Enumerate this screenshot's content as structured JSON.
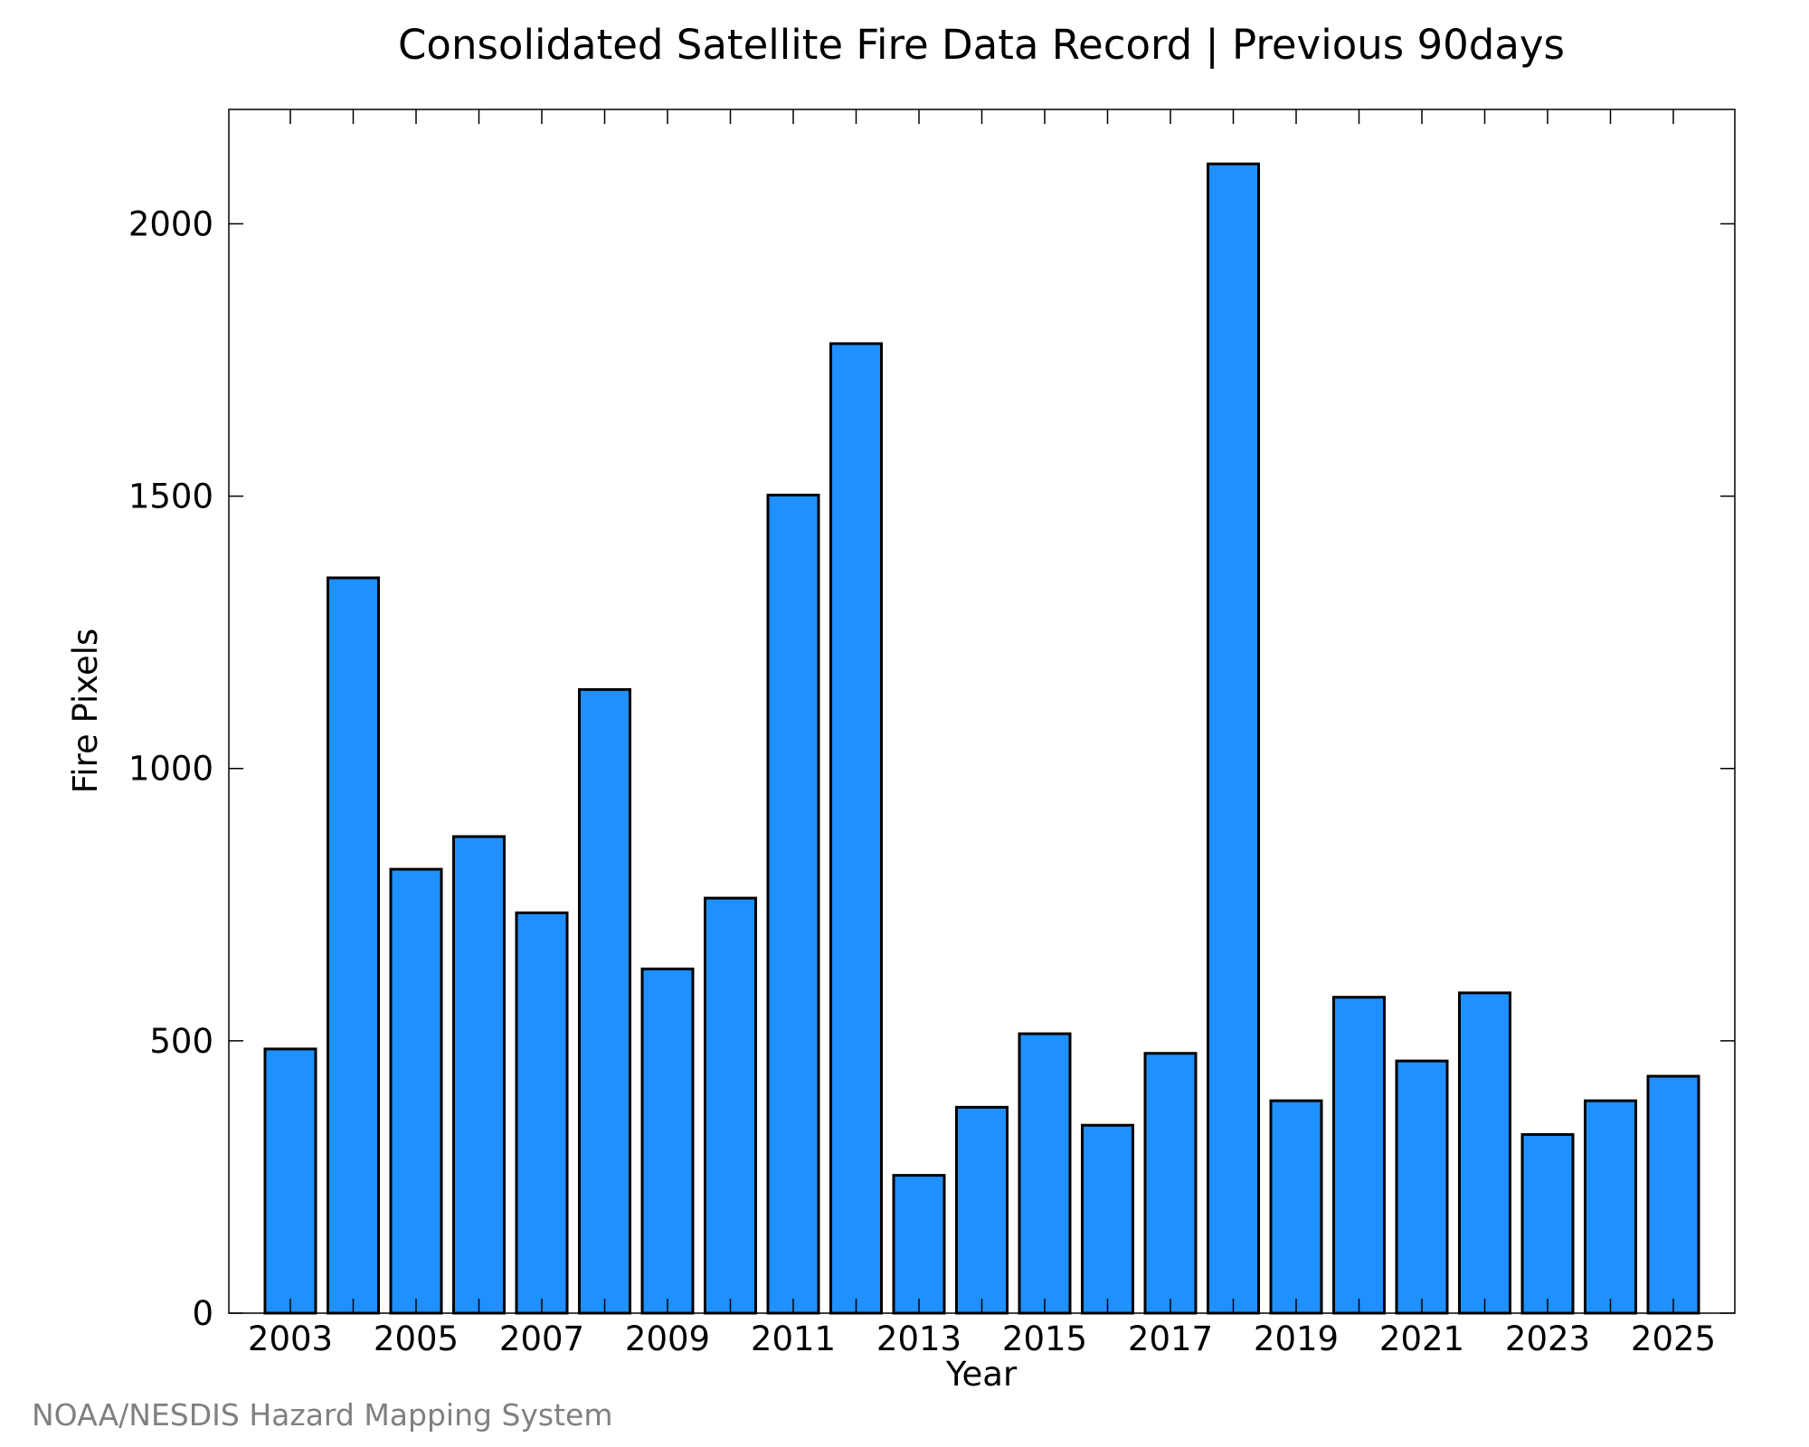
{
  "chart_data": {
    "type": "bar",
    "title": "Consolidated Satellite Fire Data Record | Previous 90days",
    "xlabel": "Year",
    "ylabel": "Fire Pixels",
    "categories": [
      "2003",
      "2004",
      "2005",
      "2006",
      "2007",
      "2008",
      "2009",
      "2010",
      "2011",
      "2012",
      "2013",
      "2014",
      "2015",
      "2016",
      "2017",
      "2018",
      "2019",
      "2020",
      "2021",
      "2022",
      "2023",
      "2024",
      "2025"
    ],
    "values": [
      485,
      1350,
      815,
      875,
      735,
      1145,
      632,
      762,
      1502,
      1780,
      253,
      378,
      513,
      345,
      477,
      2110,
      390,
      580,
      463,
      588,
      328,
      390,
      435
    ],
    "xticks": [
      "2003",
      "2005",
      "2007",
      "2009",
      "2011",
      "2013",
      "2015",
      "2017",
      "2019",
      "2021",
      "2023",
      "2025"
    ],
    "yticks": [
      0,
      500,
      1000,
      1500,
      2000
    ],
    "ylim": [
      0,
      2210
    ],
    "bar_color": "#1e90ff",
    "grid": false,
    "legend": "none"
  },
  "credit": "NOAA/NESDIS Hazard Mapping System"
}
